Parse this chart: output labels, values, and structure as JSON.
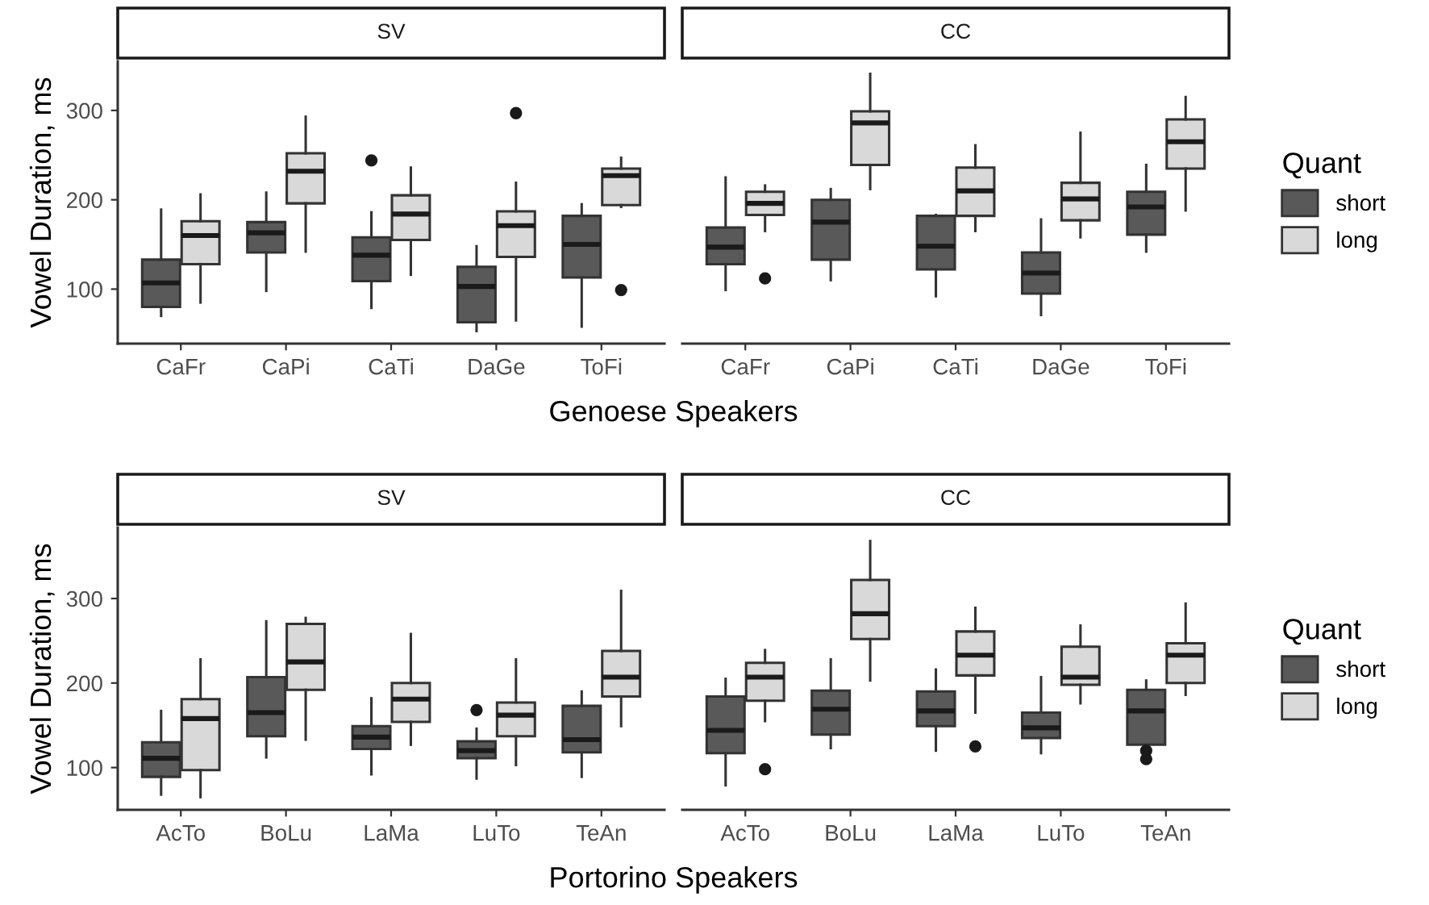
{
  "chart_data": [
    {
      "type": "box",
      "title": "SV",
      "xlabel": "Genoese Speakers",
      "ylabel": "Vowel Duration, ms",
      "categories": [
        "CaFr",
        "CaPi",
        "CaTi",
        "DaGe",
        "ToFi"
      ],
      "ylim": [
        39,
        355
      ],
      "yticks": [
        100,
        200,
        300
      ],
      "legend": false,
      "grid": false,
      "series": [
        {
          "color": "#595959",
          "boxes": [
            {
              "low": 70,
              "q1": 80,
              "median": 107,
              "q3": 133,
              "high": 189
            },
            {
              "low": 98,
              "q1": 141,
              "median": 163,
              "q3": 175,
              "high": 208
            },
            {
              "low": 79,
              "q1": 109,
              "median": 138,
              "q3": 158,
              "high": 186,
              "outliers": [
                244
              ]
            },
            {
              "low": 53,
              "q1": 63,
              "median": 103,
              "q3": 125,
              "high": 148
            },
            {
              "low": 58,
              "q1": 113,
              "median": 150,
              "q3": 182,
              "high": 195
            }
          ]
        },
        {
          "color": "#d9d9d9",
          "boxes": [
            {
              "low": 85,
              "q1": 128,
              "median": 160,
              "q3": 176,
              "high": 206
            },
            {
              "low": 142,
              "q1": 196,
              "median": 232,
              "q3": 252,
              "high": 293
            },
            {
              "low": 116,
              "q1": 155,
              "median": 184,
              "q3": 205,
              "high": 236
            },
            {
              "low": 65,
              "q1": 136,
              "median": 171,
              "q3": 187,
              "high": 219,
              "outliers": [
                297
              ]
            },
            {
              "low": 192,
              "q1": 194,
              "median": 227,
              "q3": 235,
              "high": 247,
              "outliers": [
                99
              ]
            }
          ]
        }
      ]
    },
    {
      "type": "box",
      "title": "CC",
      "categories": [
        "CaFr",
        "CaPi",
        "CaTi",
        "DaGe",
        "ToFi"
      ],
      "yticks": [
        100,
        200,
        300
      ],
      "tick_labels": "x",
      "legend": "right",
      "legend_title": "Quant",
      "grid": false,
      "series": [
        {
          "name": "short",
          "color": "#595959",
          "boxes": [
            {
              "low": 99,
              "q1": 128,
              "median": 147,
              "q3": 169,
              "high": 225
            },
            {
              "low": 110,
              "q1": 133,
              "median": 175,
              "q3": 200,
              "high": 212
            },
            {
              "low": 92,
              "q1": 122,
              "median": 148,
              "q3": 182,
              "high": 183
            },
            {
              "low": 71,
              "q1": 95,
              "median": 118,
              "q3": 141,
              "high": 178
            },
            {
              "low": 142,
              "q1": 161,
              "median": 192,
              "q3": 209,
              "high": 239
            }
          ]
        },
        {
          "name": "long",
          "color": "#d9d9d9",
          "boxes": [
            {
              "low": 165,
              "q1": 183,
              "median": 196,
              "q3": 209,
              "high": 216,
              "outliers": [
                112
              ]
            },
            {
              "low": 212,
              "q1": 239,
              "median": 286,
              "q3": 299,
              "high": 341
            },
            {
              "low": 165,
              "q1": 182,
              "median": 210,
              "q3": 236,
              "high": 261
            },
            {
              "low": 158,
              "q1": 177,
              "median": 201,
              "q3": 219,
              "high": 275
            },
            {
              "low": 188,
              "q1": 235,
              "median": 265,
              "q3": 290,
              "high": 315
            }
          ]
        }
      ]
    },
    {
      "type": "box",
      "title": "SV",
      "xlabel": "Portorino Speakers",
      "ylabel": "Vowel Duration, ms",
      "categories": [
        "AcTo",
        "BoLu",
        "LaMa",
        "LuTo",
        "TeAn"
      ],
      "ylim": [
        50,
        384
      ],
      "yticks": [
        100,
        200,
        300
      ],
      "legend": false,
      "grid": false,
      "series": [
        {
          "color": "#595959",
          "boxes": [
            {
              "low": 68,
              "q1": 89,
              "median": 111,
              "q3": 130,
              "high": 167
            },
            {
              "low": 112,
              "q1": 137,
              "median": 165,
              "q3": 207,
              "high": 273
            },
            {
              "low": 92,
              "q1": 122,
              "median": 136,
              "q3": 149,
              "high": 182
            },
            {
              "low": 87,
              "q1": 111,
              "median": 120,
              "q3": 131,
              "high": 146,
              "outliers": [
                168
              ]
            },
            {
              "low": 89,
              "q1": 118,
              "median": 133,
              "q3": 173,
              "high": 190
            }
          ]
        },
        {
          "color": "#d9d9d9",
          "boxes": [
            {
              "low": 65,
              "q1": 97,
              "median": 158,
              "q3": 181,
              "high": 228
            },
            {
              "low": 133,
              "q1": 192,
              "median": 225,
              "q3": 270,
              "high": 277
            },
            {
              "low": 127,
              "q1": 154,
              "median": 181,
              "q3": 200,
              "high": 258
            },
            {
              "low": 103,
              "q1": 137,
              "median": 162,
              "q3": 177,
              "high": 228
            },
            {
              "low": 149,
              "q1": 184,
              "median": 207,
              "q3": 238,
              "high": 309
            }
          ]
        }
      ]
    },
    {
      "type": "box",
      "title": "CC",
      "categories": [
        "AcTo",
        "BoLu",
        "LaMa",
        "LuTo",
        "TeAn"
      ],
      "yticks": [
        100,
        200,
        300
      ],
      "tick_labels": "x",
      "legend": "right",
      "legend_title": "Quant",
      "grid": false,
      "series": [
        {
          "name": "short",
          "color": "#595959",
          "boxes": [
            {
              "low": 79,
              "q1": 117,
              "median": 144,
              "q3": 184,
              "high": 205
            },
            {
              "low": 123,
              "q1": 139,
              "median": 169,
              "q3": 191,
              "high": 228
            },
            {
              "low": 120,
              "q1": 149,
              "median": 167,
              "q3": 190,
              "high": 216
            },
            {
              "low": 117,
              "q1": 135,
              "median": 147,
              "q3": 165,
              "high": 207
            },
            {
              "low": 114,
              "q1": 127,
              "median": 167,
              "q3": 192,
              "high": 203,
              "outliers": [
                120,
                110
              ]
            }
          ]
        },
        {
          "name": "long",
          "color": "#d9d9d9",
          "boxes": [
            {
              "low": 155,
              "q1": 179,
              "median": 207,
              "q3": 224,
              "high": 239,
              "outliers": [
                98
              ]
            },
            {
              "low": 203,
              "q1": 252,
              "median": 282,
              "q3": 322,
              "high": 368
            },
            {
              "low": 165,
              "q1": 209,
              "median": 233,
              "q3": 261,
              "high": 289,
              "outliers": [
                125
              ]
            },
            {
              "low": 176,
              "q1": 198,
              "median": 207,
              "q3": 243,
              "high": 268
            },
            {
              "low": 186,
              "q1": 200,
              "median": 233,
              "q3": 247,
              "high": 294
            }
          ]
        }
      ]
    }
  ]
}
